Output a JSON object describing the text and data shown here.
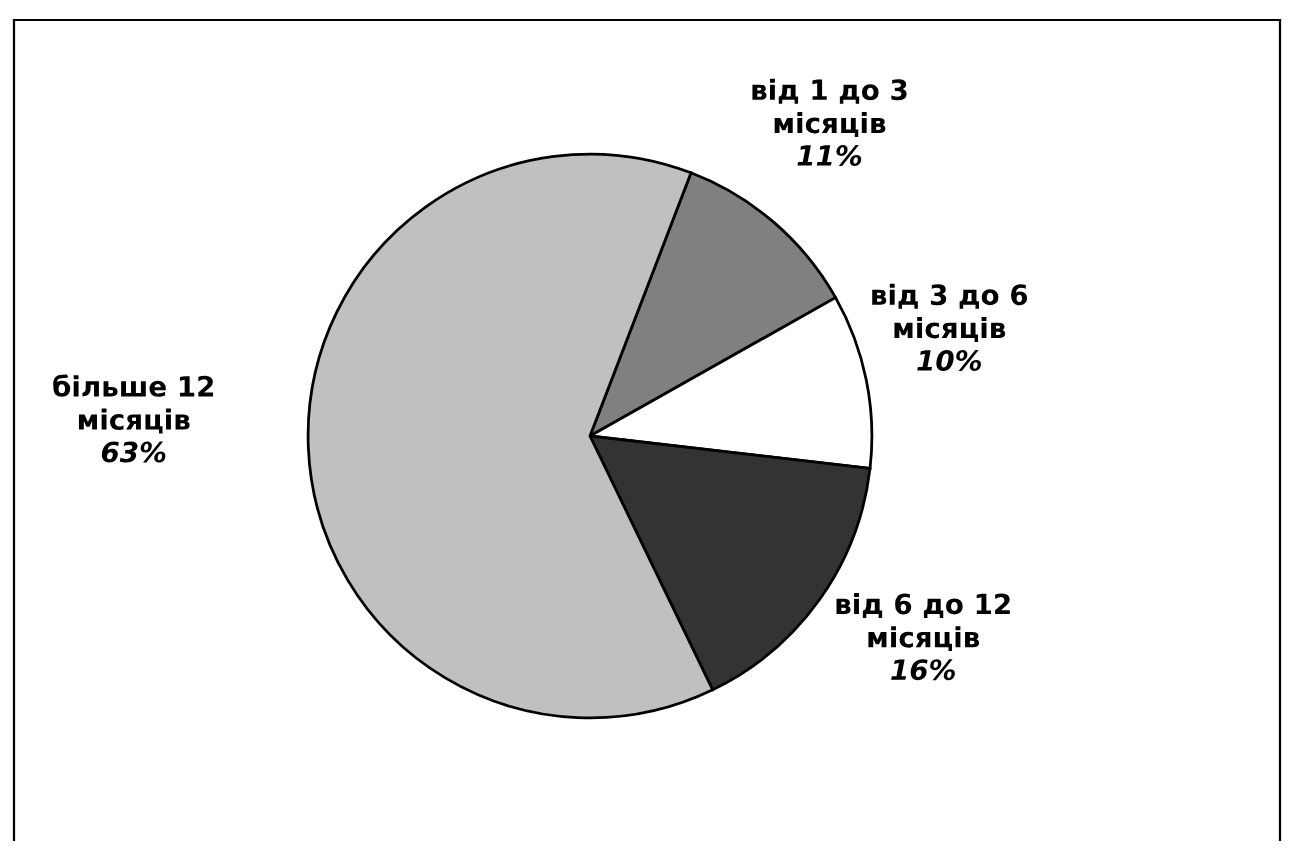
{
  "chart_data": {
    "type": "pie",
    "categories": [
      "від 1 до 3\nмісяців",
      "від 3 до 6\nмісяців",
      "від 6 до 12\nмісяців",
      "більше 12\nмісяців"
    ],
    "values": [
      11,
      10,
      16,
      63
    ],
    "colors": [
      "#808080",
      "#ffffff",
      "#333333",
      "#c0c0c0"
    ],
    "value_labels": [
      "11%",
      "10%",
      "16%",
      "63%"
    ],
    "legend": false
  }
}
